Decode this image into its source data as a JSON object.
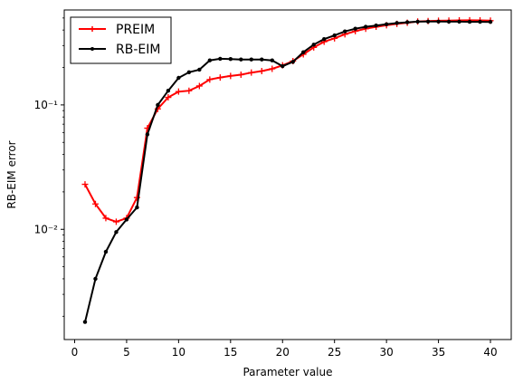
{
  "chart_data": {
    "type": "line",
    "title": "",
    "xlabel": "Parameter value",
    "ylabel": "RB-EIM error",
    "xscale": "linear",
    "yscale": "log",
    "xlim": [
      -1,
      42
    ],
    "ylim": [
      0.0013,
      0.58
    ],
    "xticks": [
      0,
      5,
      10,
      15,
      20,
      25,
      30,
      35,
      40
    ],
    "xtick_labels": [
      "0",
      "5",
      "10",
      "15",
      "20",
      "25",
      "30",
      "35",
      "40"
    ],
    "yticks": [
      0.01,
      0.1
    ],
    "ytick_labels": [
      "10⁻²",
      "10⁻¹"
    ],
    "grid": false,
    "legend_position": "top-left",
    "series": [
      {
        "name": "PREIM",
        "color": "#ff0000",
        "marker": "plus",
        "x": [
          1,
          2,
          3,
          4,
          5,
          6,
          7,
          8,
          9,
          10,
          11,
          12,
          13,
          14,
          15,
          16,
          17,
          18,
          19,
          20,
          21,
          22,
          23,
          24,
          25,
          26,
          27,
          28,
          29,
          30,
          31,
          32,
          33,
          34,
          35,
          36,
          37,
          38,
          39,
          40
        ],
        "y": [
          0.023,
          0.016,
          0.0123,
          0.0115,
          0.0123,
          0.018,
          0.065,
          0.093,
          0.115,
          0.128,
          0.13,
          0.142,
          0.16,
          0.166,
          0.171,
          0.175,
          0.182,
          0.187,
          0.195,
          0.208,
          0.225,
          0.255,
          0.29,
          0.322,
          0.343,
          0.37,
          0.392,
          0.41,
          0.425,
          0.437,
          0.448,
          0.458,
          0.468,
          0.472,
          0.475,
          0.476,
          0.478,
          0.479,
          0.478,
          0.476
        ]
      },
      {
        "name": "RB-EIM",
        "color": "#000000",
        "marker": "dot",
        "x": [
          1,
          2,
          3,
          4,
          5,
          6,
          7,
          8,
          9,
          10,
          11,
          12,
          13,
          14,
          15,
          16,
          17,
          18,
          19,
          20,
          21,
          22,
          23,
          24,
          25,
          26,
          27,
          28,
          29,
          30,
          31,
          32,
          33,
          34,
          35,
          36,
          37,
          38,
          39,
          40
        ],
        "y": [
          0.0018,
          0.004,
          0.0066,
          0.0095,
          0.012,
          0.015,
          0.058,
          0.1,
          0.13,
          0.165,
          0.183,
          0.192,
          0.228,
          0.235,
          0.234,
          0.232,
          0.232,
          0.232,
          0.228,
          0.205,
          0.222,
          0.265,
          0.305,
          0.338,
          0.362,
          0.39,
          0.41,
          0.425,
          0.435,
          0.445,
          0.455,
          0.462,
          0.467,
          0.468,
          0.468,
          0.467,
          0.467,
          0.466,
          0.466,
          0.465
        ]
      }
    ]
  }
}
